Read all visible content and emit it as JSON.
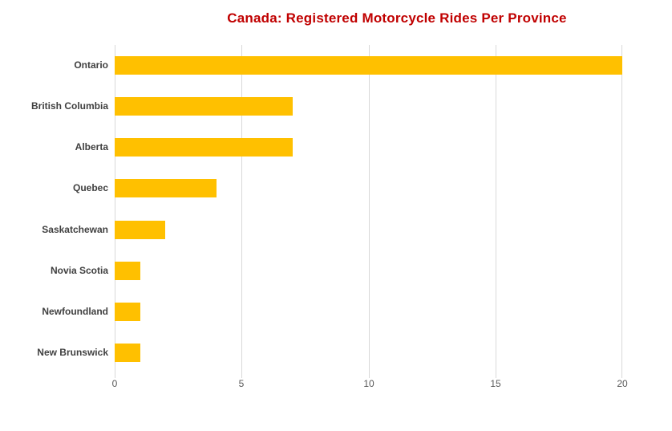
{
  "chart_data": {
    "type": "bar",
    "orientation": "horizontal",
    "title": "Canada: Registered Motorcycle Rides Per Province",
    "categories": [
      "Ontario",
      "British Columbia",
      "Alberta",
      "Quebec",
      "Saskatchewan",
      "Novia Scotia",
      "Newfoundland",
      "New Brunswick"
    ],
    "values": [
      20,
      7,
      7,
      4,
      2,
      1,
      1,
      1
    ],
    "xlabel": "",
    "ylabel": "",
    "xlim": [
      0,
      20
    ],
    "xticks": [
      0,
      5,
      10,
      15,
      20
    ],
    "xtick_labels": [
      "0",
      "5",
      "10",
      "15",
      "20"
    ],
    "grid": "vertical-gridlines-on",
    "legend": "none",
    "colors": {
      "bar": "#FFC000",
      "title": "#C00000",
      "category_label": "#404040",
      "tick_label": "#595959",
      "gridline": "#D9D9D9"
    }
  }
}
